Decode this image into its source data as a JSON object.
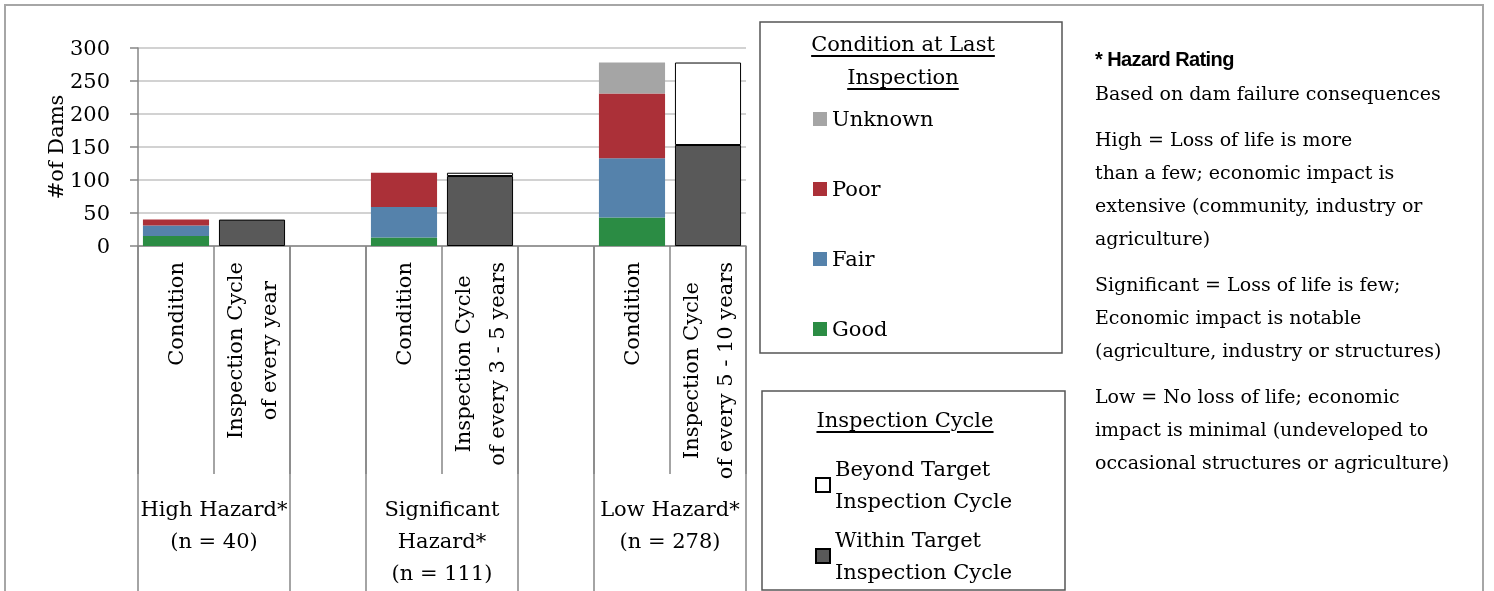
{
  "chart_data": {
    "type": "bar",
    "stacked": true,
    "ylabel": "#of Dams",
    "legend_title": "Condition at Last Inspection",
    "categories": [
      "Condition",
      "Inspection Cycle\nof every year",
      null,
      "Condition",
      "Inspection Cycle\nof every 3 - 5 years",
      null,
      "Condition",
      "Inspection Cycle\nof every 5 - 10 years"
    ],
    "series": [
      {
        "name": "Good",
        "color": "#2b8c44",
        "values": [
          15,
          null,
          null,
          13,
          null,
          null,
          43,
          null
        ]
      },
      {
        "name": "Fair",
        "color": "#5582ab",
        "values": [
          16,
          null,
          null,
          46,
          null,
          null,
          90,
          null
        ]
      },
      {
        "name": "Poor",
        "color": "#ab3038",
        "values": [
          9,
          null,
          null,
          52,
          null,
          null,
          98,
          null
        ]
      },
      {
        "name": "Unknown",
        "color": "#a5a5a5",
        "values": [
          null,
          null,
          null,
          null,
          null,
          null,
          47,
          null
        ]
      },
      {
        "name": "Within Target Inspection Cycle",
        "color": "#595959",
        "values": [
          null,
          40,
          null,
          null,
          106,
          null,
          null,
          153
        ]
      },
      {
        "name": "Beyond Target Inspection Cycle",
        "color": "#ffffff",
        "values": [
          null,
          null,
          null,
          null,
          5,
          null,
          null,
          125
        ]
      }
    ],
    "ylim": [
      0,
      300
    ],
    "yticks": [
      0,
      50,
      100,
      150,
      200,
      250,
      300
    ],
    "grid": "y",
    "legend": "right",
    "annotations": [
      "High Hazard*\n(n = 40)",
      "Significant\nHazard*\n(n = 111)",
      "Low Hazard*\n(n = 278)",
      "Inspection Cycle",
      "* Hazard Rating",
      "Based on dam failure consequences",
      "High = Loss of life is more\nthan a few; economic impact is\nextensive (community, industry or\nagriculture)",
      "Significant = Loss of life is few;\nEconomic impact is notable\n(agriculture, industry or structures)",
      "Low = No loss of life; economic\nimpact is minimal (undeveloped to\noccasional structures or agriculture)"
    ]
  }
}
